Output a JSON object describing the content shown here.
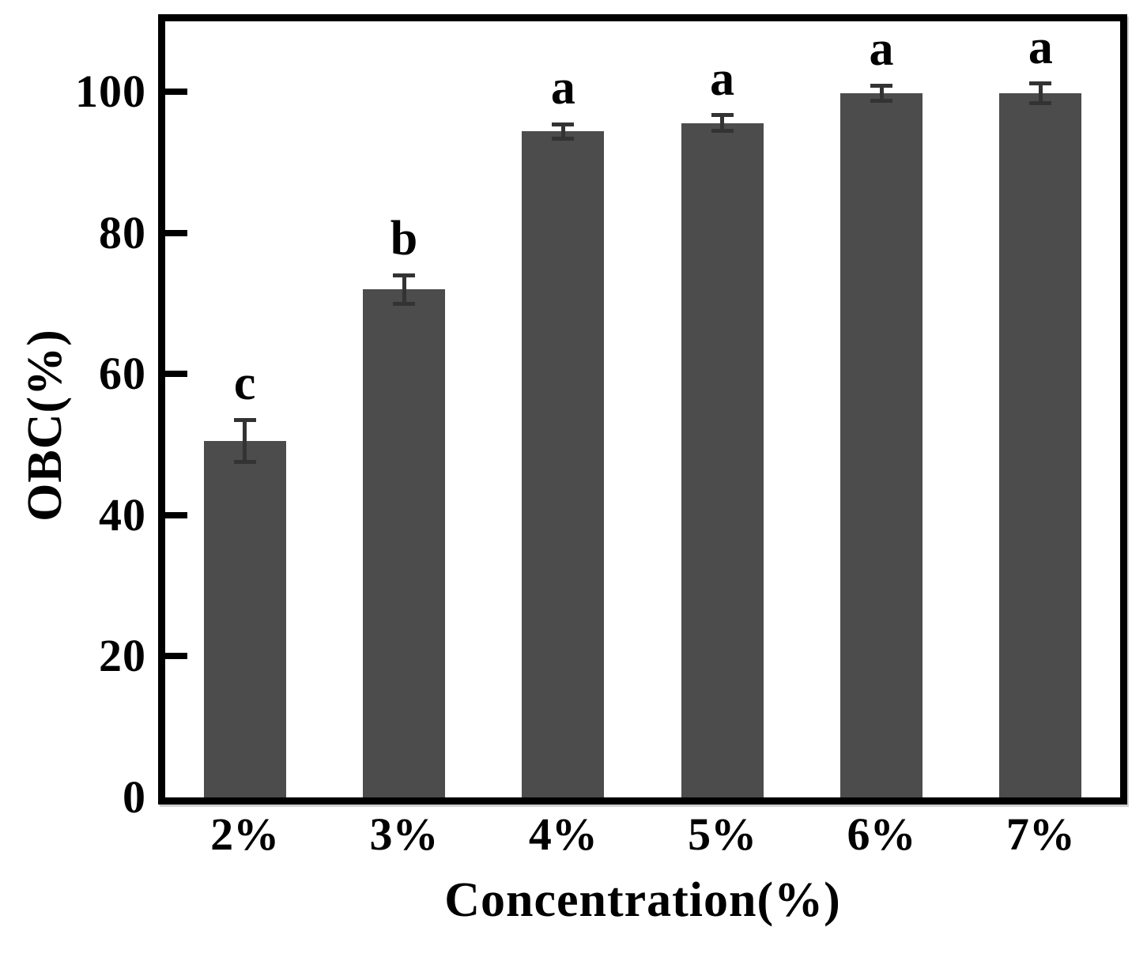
{
  "chart_data": {
    "type": "bar",
    "title": "",
    "xlabel": "Concentration(%)",
    "ylabel": "OBC(%)",
    "categories": [
      "2%",
      "3%",
      "4%",
      "5%",
      "6%",
      "7%"
    ],
    "values": [
      50.5,
      72.0,
      94.4,
      95.6,
      99.8,
      99.8
    ],
    "errors": [
      3.0,
      2.0,
      1.0,
      1.1,
      1.1,
      1.4
    ],
    "significance_letters": [
      "c",
      "b",
      "a",
      "a",
      "a",
      "a"
    ],
    "yticks": [
      0,
      20,
      40,
      60,
      80,
      100
    ],
    "ylim": [
      0,
      110
    ],
    "grid": "off",
    "legend": "none",
    "colors": {
      "bar_fill": "#4c4c4c",
      "error_bar": "#333333",
      "axis": "#000000",
      "text": "#000000",
      "background": "#ffffff"
    }
  }
}
